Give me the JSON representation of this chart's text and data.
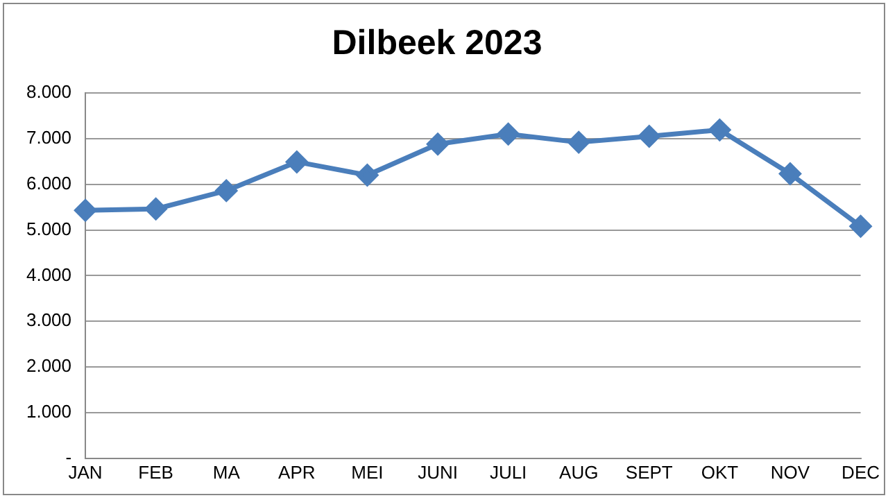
{
  "chart_data": {
    "type": "line",
    "title": "Dilbeek 2023",
    "categories": [
      "JAN",
      "FEB",
      "MA",
      "APR",
      "MEI",
      "JUNI",
      "JULI",
      "AUG",
      "SEPT",
      "OKT",
      "NOV",
      "DEC"
    ],
    "series": [
      {
        "color": "#4a7ebb",
        "values": [
          5430,
          5460,
          5860,
          6490,
          6200,
          6880,
          7100,
          6920,
          7050,
          7190,
          6230,
          5080
        ]
      }
    ],
    "ylim": [
      0,
      8000
    ],
    "yticks": [
      {
        "value": 0,
        "label": "-"
      },
      {
        "value": 1000,
        "label": "1.000"
      },
      {
        "value": 2000,
        "label": "2.000"
      },
      {
        "value": 3000,
        "label": "3.000"
      },
      {
        "value": 4000,
        "label": "4.000"
      },
      {
        "value": 5000,
        "label": "5.000"
      },
      {
        "value": 6000,
        "label": "6.000"
      },
      {
        "value": 7000,
        "label": "7.000"
      },
      {
        "value": 8000,
        "label": "8.000"
      }
    ],
    "grid": "y",
    "legend": false,
    "marker": "diamond",
    "line_style": "solid"
  }
}
